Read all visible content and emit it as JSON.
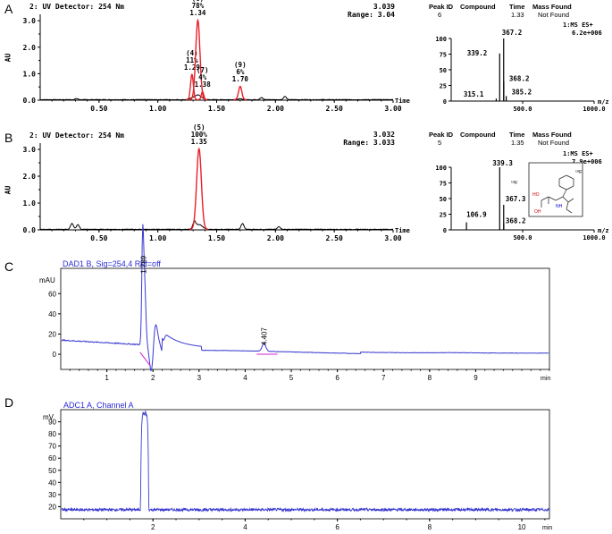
{
  "panels": {
    "A": {
      "letter": "A",
      "detector": "2: UV Detector: 254 Nm",
      "top_value": "3.039",
      "range": "Range: 3.04",
      "ylabel": "AU",
      "xlabel": "Time",
      "ms_header": {
        "peak_id": "Peak ID",
        "compound": "Compound",
        "time": "Time",
        "mass_found": "Mass Found"
      },
      "ms_row": {
        "peak_id": "6",
        "time": "1.33",
        "mass_found": "Not Found"
      },
      "ms_tag": "1:MS ES+",
      "ms_intensity": "6.2e+006",
      "ms_xlabel": "m/z"
    },
    "B": {
      "letter": "B",
      "detector": "2: UV Detector: 254 Nm",
      "top_value": "3.032",
      "range": "Range: 3.033",
      "ylabel": "AU",
      "xlabel": "Time",
      "ms_header": {
        "peak_id": "Peak ID",
        "compound": "Compound",
        "time": "Time",
        "mass_found": "Mass Found"
      },
      "ms_row": {
        "peak_id": "5",
        "time": "1.35",
        "mass_found": "Not Found"
      },
      "ms_tag": "1:MS ES+",
      "ms_intensity": "7.9e+006",
      "ms_xlabel": "m/z",
      "structure_labels": [
        "¹⁸F",
        "HO",
        "NH",
        "OH"
      ]
    },
    "C": {
      "letter": "C",
      "title": "DAD1 B, Sig=254,4 Ref=off",
      "yunit": "mAU",
      "xunit": "min"
    },
    "D": {
      "letter": "D",
      "title": "ADC1 A, Channel A",
      "yunit": "mV",
      "xunit": "min"
    }
  },
  "colors": {
    "axis": "#000000",
    "uv_trace": "#000000",
    "highlight_peak": "#e8202a",
    "hplc_trace": "#3a3ad0",
    "hplc_title": "#2a2ad8",
    "baseline_magenta": "#d020d0"
  },
  "chart_data": [
    {
      "type": "line",
      "id": "A-uv",
      "title": "2: UV Detector: 254 Nm",
      "xlabel": "Time",
      "ylabel": "AU",
      "xlim": [
        0.0,
        3.0
      ],
      "ylim": [
        0.0,
        3.04
      ],
      "xticks": [
        "0.50",
        "1.00",
        "1.50",
        "2.00",
        "2.50",
        "3.00"
      ],
      "yticks": [
        "0.0",
        "1.0",
        "2.0",
        "3.0"
      ],
      "peaks": [
        {
          "label": "(4)",
          "percent": "11%",
          "rt": "1.29",
          "x": 1.29,
          "height": 0.95,
          "width": 0.012,
          "highlight": true
        },
        {
          "label": "(6)",
          "percent": "78%",
          "rt": "1.34",
          "x": 1.34,
          "height": 3.0,
          "width": 0.018,
          "highlight": true
        },
        {
          "label": "(7)",
          "percent": "4%",
          "rt": "1.38",
          "x": 1.38,
          "height": 0.3,
          "width": 0.01,
          "highlight": true
        },
        {
          "label": "(9)",
          "percent": "6%",
          "rt": "1.70",
          "x": 1.7,
          "height": 0.5,
          "width": 0.014,
          "highlight": true
        }
      ],
      "minor_peaks": [
        {
          "x": 0.31,
          "height": 0.04
        },
        {
          "x": 1.88,
          "height": 0.08
        },
        {
          "x": 2.08,
          "height": 0.12
        }
      ]
    },
    {
      "type": "bar",
      "id": "A-ms",
      "xlabel": "m/z",
      "xlim": [
        0.0,
        1000.0
      ],
      "ylim": [
        0,
        100
      ],
      "xticks": [
        "500.0",
        "1000.0"
      ],
      "yticks": [
        "0",
        "25",
        "50",
        "75",
        "100"
      ],
      "peaks": [
        {
          "mz": 315.1,
          "value": 4,
          "label": "315.1"
        },
        {
          "mz": 339.2,
          "value": 76,
          "label": "339.2"
        },
        {
          "mz": 367.2,
          "value": 100,
          "label": "367.2"
        },
        {
          "mz": 368.2,
          "value": 32,
          "label": "368.2"
        },
        {
          "mz": 385.2,
          "value": 8,
          "label": "385.2"
        }
      ]
    },
    {
      "type": "line",
      "id": "B-uv",
      "title": "2: UV Detector: 254 Nm",
      "xlabel": "Time",
      "ylabel": "AU",
      "xlim": [
        0.0,
        3.0
      ],
      "ylim": [
        0.0,
        3.033
      ],
      "xticks": [
        "0.50",
        "1.00",
        "1.50",
        "2.00",
        "2.50",
        "3.00"
      ],
      "yticks": [
        "0.0",
        "1.0",
        "2.0",
        "3.0"
      ],
      "peaks": [
        {
          "label": "(5)",
          "percent": "100%",
          "rt": "1.35",
          "x": 1.35,
          "height": 3.0,
          "width": 0.02,
          "highlight": true
        }
      ],
      "minor_peaks": [
        {
          "x": 0.27,
          "height": 0.22
        },
        {
          "x": 0.32,
          "height": 0.18
        },
        {
          "x": 1.31,
          "height": 0.25
        },
        {
          "x": 1.72,
          "height": 0.22
        },
        {
          "x": 2.03,
          "height": 0.1
        }
      ]
    },
    {
      "type": "bar",
      "id": "B-ms",
      "xlabel": "m/z",
      "xlim": [
        0.0,
        1000.0
      ],
      "ylim": [
        0,
        100
      ],
      "xticks": [
        "500.0",
        "1000.0"
      ],
      "yticks": [
        "0",
        "25",
        "50",
        "75",
        "100"
      ],
      "peaks": [
        {
          "mz": 106.9,
          "value": 12,
          "label": "106.9"
        },
        {
          "mz": 339.3,
          "value": 100,
          "label": "339.3"
        },
        {
          "mz": 367.3,
          "value": 40,
          "label": "367.3"
        },
        {
          "mz": 368.2,
          "value": 11,
          "label": "368.2"
        }
      ]
    },
    {
      "type": "line",
      "id": "C-hplc",
      "title": "DAD1 B, Sig=254,4 Ref=off",
      "ylabel": "mAU",
      "xlabel": "min",
      "xlim": [
        0.0,
        10.6
      ],
      "ylim": [
        -15,
        85
      ],
      "xticks": [
        "1",
        "2",
        "3",
        "4",
        "5",
        "6",
        "7",
        "8",
        "9"
      ],
      "yticks": [
        "0",
        "20",
        "40",
        "60"
      ],
      "peak_labels": [
        {
          "x": 1.789,
          "y": 78,
          "label": "1.789"
        },
        {
          "x": 4.407,
          "y": 7,
          "label": "4.407"
        }
      ]
    },
    {
      "type": "line",
      "id": "D-radio",
      "title": "ADC1 A, Channel A",
      "ylabel": "mV",
      "xlabel": "min",
      "xlim": [
        0.0,
        10.6
      ],
      "ylim": [
        10,
        100
      ],
      "xticks": [
        "2",
        "4",
        "6",
        "8",
        "10"
      ],
      "yticks": [
        "20",
        "30",
        "40",
        "50",
        "60",
        "70",
        "80",
        "90"
      ],
      "baseline": 17.5,
      "peak": {
        "x": 1.82,
        "height": 99
      }
    }
  ]
}
